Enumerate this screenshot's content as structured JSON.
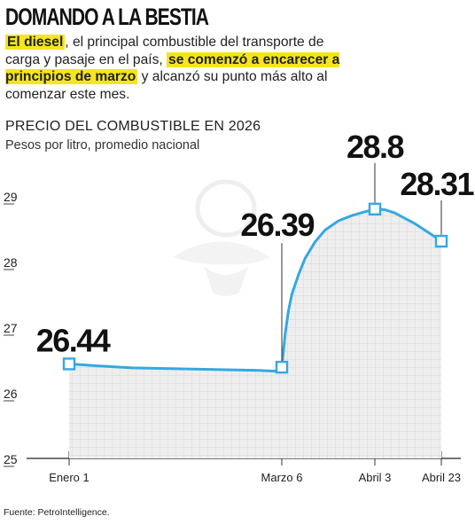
{
  "headline": "DOMANDO A LA BESTIA",
  "intro": {
    "p1_hl": "El diesel",
    "p2": ", el principal combustible del transporte de carga y pasaje en el país, ",
    "p3_hl": "se comenzó a encarecer a principios de marzo",
    "p4": " y alcanzó su punto más alto al comenzar este mes."
  },
  "source": "Fuente: PetroIntelligence.",
  "colors": {
    "line": "#35a8e0",
    "fill": "#eeeeee",
    "highlight": "#f5e51d",
    "grid": "#cccccc"
  },
  "chart_data": {
    "type": "area",
    "title": "PRECIO DEL COMBUSTIBLE EN 2026",
    "subtitle": "Pesos por litro, promedio nacional",
    "ylim": [
      25,
      29
    ],
    "yticks": [
      25,
      26,
      27,
      28,
      29
    ],
    "x_range": [
      1,
      113
    ],
    "x_ticks": [
      {
        "x": 1,
        "label": "Enero 1"
      },
      {
        "x": 65,
        "label": "Marzo 6"
      },
      {
        "x": 93,
        "label": "Abril 3"
      },
      {
        "x": 113,
        "label": "Abril 23"
      }
    ],
    "series": [
      {
        "points": [
          [
            1,
            26.44
          ],
          [
            10,
            26.41
          ],
          [
            20,
            26.38
          ],
          [
            30,
            26.37
          ],
          [
            40,
            26.36
          ],
          [
            50,
            26.35
          ],
          [
            58,
            26.34
          ],
          [
            63,
            26.33
          ],
          [
            65,
            26.39
          ],
          [
            66,
            26.9
          ],
          [
            67,
            27.25
          ],
          [
            68,
            27.5
          ],
          [
            70,
            27.8
          ],
          [
            72,
            28.05
          ],
          [
            75,
            28.3
          ],
          [
            78,
            28.48
          ],
          [
            82,
            28.62
          ],
          [
            86,
            28.7
          ],
          [
            90,
            28.76
          ],
          [
            93,
            28.8
          ],
          [
            96,
            28.79
          ],
          [
            99,
            28.74
          ],
          [
            102,
            28.66
          ],
          [
            105,
            28.58
          ],
          [
            108,
            28.48
          ],
          [
            111,
            28.38
          ],
          [
            113,
            28.31
          ]
        ]
      }
    ],
    "labeled_points": [
      {
        "x": 1,
        "y": 26.44,
        "label": "26.44",
        "anchor": "above"
      },
      {
        "x": 65,
        "y": 26.39,
        "label": "26.39",
        "anchor": "above-left"
      },
      {
        "x": 93,
        "y": 28.8,
        "label": "28.8",
        "anchor": "above"
      },
      {
        "x": 113,
        "y": 28.31,
        "label": "28.31",
        "anchor": "above"
      }
    ]
  }
}
